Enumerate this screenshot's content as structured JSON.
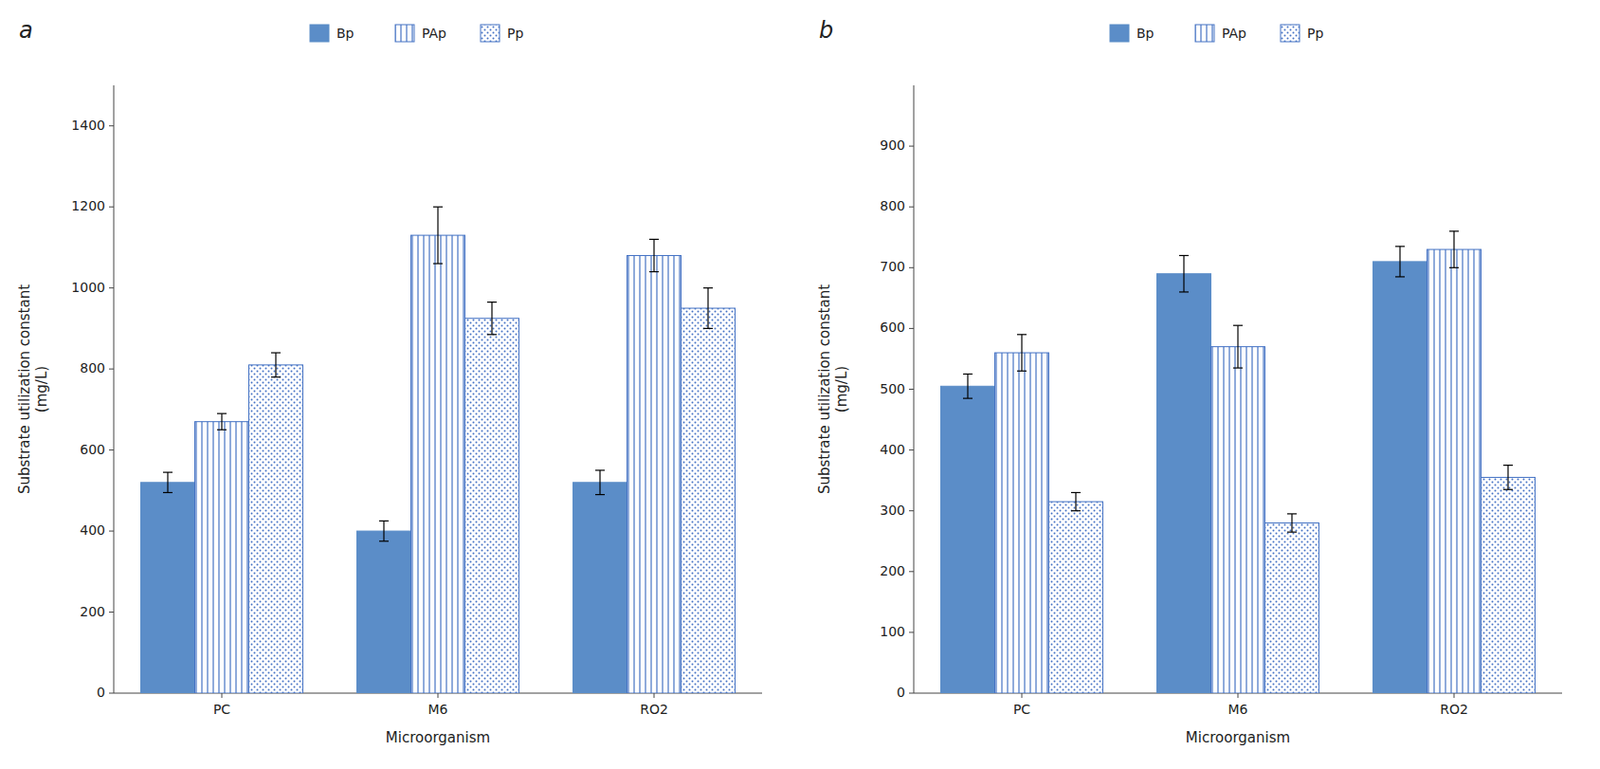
{
  "chart_data": [
    {
      "type": "bar",
      "title": "a",
      "categories": [
        "PC",
        "M6",
        "RO2"
      ],
      "series": [
        {
          "name": "Bp",
          "color": "#5B8DC8",
          "values": [
            520,
            400,
            520
          ],
          "errors": [
            25,
            25,
            30
          ]
        },
        {
          "name": "PAp",
          "color": "#4472C4",
          "values": [
            670,
            1130,
            1080
          ],
          "errors": [
            20,
            70,
            40
          ]
        },
        {
          "name": "Pp",
          "color": "#4472C4",
          "values": [
            810,
            925,
            950
          ],
          "errors": [
            30,
            40,
            50
          ]
        }
      ],
      "xlabel": "Microorganism",
      "ylabel": "Substrate utilization constant\n(mg/L)",
      "ylim": [
        0,
        1500
      ],
      "yticks": [
        0,
        200,
        400,
        600,
        800,
        1000,
        1200,
        1400
      ],
      "grid": false,
      "legend": "top"
    },
    {
      "type": "bar",
      "title": "b",
      "categories": [
        "PC",
        "M6",
        "RO2"
      ],
      "series": [
        {
          "name": "Bp",
          "color": "#5B8DC8",
          "values": [
            505,
            690,
            710
          ],
          "errors": [
            20,
            30,
            25
          ]
        },
        {
          "name": "PAp",
          "color": "#4472C4",
          "values": [
            560,
            570,
            730
          ],
          "errors": [
            30,
            35,
            30
          ]
        },
        {
          "name": "Pp",
          "color": "#4472C4",
          "values": [
            315,
            280,
            355
          ],
          "errors": [
            15,
            15,
            20
          ]
        }
      ],
      "xlabel": "Microorganism",
      "ylabel": "Substrate utilization constant\n(mg/L)",
      "ylim": [
        0,
        1000
      ],
      "yticks": [
        0,
        100,
        200,
        300,
        400,
        500,
        600,
        700,
        800,
        900
      ],
      "grid": false,
      "legend": "top"
    }
  ]
}
